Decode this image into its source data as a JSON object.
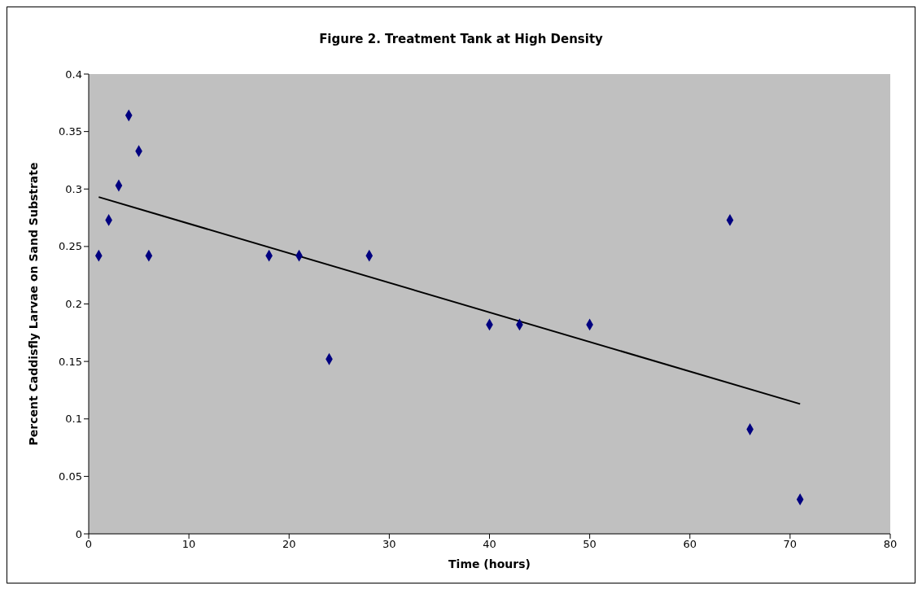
{
  "chart_data": {
    "type": "scatter",
    "title": "Figure 2. Treatment Tank at High Density",
    "xlabel": "Time (hours)",
    "ylabel": "Percent Caddisfly Larvae on Sand Substrate",
    "xlim": [
      0,
      80
    ],
    "xticks": [
      0,
      10,
      20,
      30,
      40,
      50,
      60,
      70,
      80
    ],
    "ylim": [
      0,
      0.4
    ],
    "yticks": [
      0,
      0.05,
      0.1,
      0.15,
      0.2,
      0.25,
      0.3,
      0.35,
      0.4
    ],
    "grid": false,
    "marker": "diamond",
    "series": [
      {
        "color": "#000080",
        "x": [
          1,
          2,
          3,
          4,
          5,
          6,
          18,
          21,
          24,
          28,
          40,
          43,
          50,
          64,
          66,
          71
        ],
        "values": [
          0.242,
          0.273,
          0.303,
          0.364,
          0.333,
          0.242,
          0.242,
          0.242,
          0.152,
          0.242,
          0.182,
          0.182,
          0.182,
          0.273,
          0.091,
          0.03
        ]
      },
      {
        "type": "line",
        "marker": "none",
        "color": "#000000",
        "x": [
          1,
          71
        ],
        "values": [
          0.293,
          0.113
        ]
      }
    ]
  }
}
